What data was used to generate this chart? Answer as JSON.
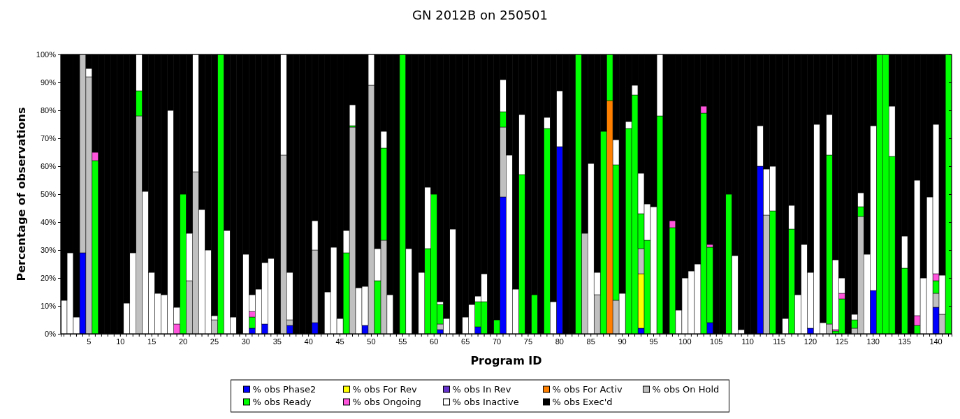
{
  "chart_data": {
    "type": "bar",
    "stacked": true,
    "title": "GN 2012B on 250501",
    "xlabel": "Program ID",
    "ylabel": "Percentage of observations",
    "categories": [
      null,
      null,
      null,
      null,
      "5",
      null,
      null,
      null,
      null,
      "10",
      null,
      null,
      null,
      null,
      "15",
      null,
      null,
      null,
      null,
      "20",
      null,
      null,
      null,
      null,
      "25",
      null,
      null,
      null,
      null,
      "30",
      null,
      null,
      null,
      null,
      "35",
      null,
      null,
      null,
      null,
      "40",
      null,
      null,
      null,
      null,
      "45",
      null,
      null,
      null,
      null,
      "50",
      null,
      null,
      null,
      null,
      "55",
      null,
      null,
      null,
      null,
      "60",
      null,
      null,
      null,
      null,
      "65",
      null,
      null,
      null,
      null,
      "70",
      null,
      null,
      null,
      null,
      "75",
      null,
      null,
      null,
      null,
      "80",
      null,
      null,
      null,
      null,
      "85",
      null,
      null,
      null,
      null,
      "90",
      null,
      null,
      null,
      null,
      "95",
      null,
      null,
      null,
      null,
      "100",
      null,
      null,
      null,
      null,
      "105",
      null,
      null,
      null,
      null,
      "110",
      null,
      null,
      null,
      null,
      "115",
      null,
      null,
      null,
      null,
      "120",
      null,
      null,
      null,
      null,
      "125",
      null,
      null,
      null,
      null,
      "130",
      null,
      null,
      null,
      null,
      "135",
      null,
      null,
      null,
      null,
      "140",
      null,
      null
    ],
    "ylim": [
      0,
      100
    ],
    "yticks": [
      {
        "value": 0,
        "label": "0%"
      },
      {
        "value": 10,
        "label": "10%"
      },
      {
        "value": 20,
        "label": "20%"
      },
      {
        "value": 30,
        "label": "30%"
      },
      {
        "value": 40,
        "label": "40%"
      },
      {
        "value": 50,
        "label": "50%"
      },
      {
        "value": 60,
        "label": "60%"
      },
      {
        "value": 70,
        "label": "70%"
      },
      {
        "value": 80,
        "label": "80%"
      },
      {
        "value": 90,
        "label": "90%"
      },
      {
        "value": 100,
        "label": "100%"
      }
    ],
    "legend": "bottom",
    "series": [
      {
        "name": "% obs Phase2",
        "color": "#0000ff",
        "values": [
          0,
          0,
          0,
          29,
          0,
          0,
          0,
          0,
          0,
          0,
          0,
          0,
          0,
          0,
          0,
          0,
          0,
          0,
          0,
          0,
          0,
          0,
          0,
          0,
          0,
          0,
          0,
          0,
          0,
          0,
          2,
          0,
          3.5,
          0,
          0,
          0,
          3,
          0,
          0,
          0,
          4,
          0,
          0,
          0,
          0,
          0,
          0,
          0,
          3,
          0,
          0,
          0,
          0,
          0,
          0,
          0,
          0,
          0,
          0,
          0,
          1.5,
          0,
          0,
          0,
          0,
          0,
          2.5,
          0,
          0,
          0,
          49,
          0,
          0,
          0,
          0,
          0,
          0,
          0,
          0,
          67,
          0,
          0,
          0,
          0,
          0,
          0,
          0,
          0,
          0,
          0,
          0,
          0,
          2,
          0,
          0,
          0,
          0,
          0,
          0,
          0,
          0,
          0,
          0,
          4,
          0,
          0,
          0,
          0,
          0,
          0,
          0,
          60,
          0,
          0,
          0,
          0,
          0,
          0,
          0,
          2,
          0,
          0,
          0,
          0,
          0,
          0,
          0,
          0,
          0,
          15.5,
          0,
          0,
          0,
          0,
          0,
          0,
          0,
          0,
          0,
          9.5,
          0,
          0
        ]
      },
      {
        "name": "% obs For Rev",
        "color": "#ffff00",
        "values": [
          0,
          0,
          0,
          0,
          0,
          0,
          0,
          0,
          0,
          0,
          0,
          0,
          0,
          0,
          0,
          0,
          0,
          0,
          0,
          0,
          0,
          0,
          0,
          0,
          0,
          0,
          0,
          0,
          0,
          0,
          0,
          0,
          0,
          0,
          0,
          0,
          0,
          0,
          0,
          0,
          0,
          0,
          0,
          0,
          0,
          0,
          0,
          0,
          0,
          0,
          0,
          0,
          0,
          0,
          0,
          0,
          0,
          0,
          0,
          0,
          0,
          0,
          0,
          0,
          0,
          0,
          0,
          0,
          0,
          0,
          0,
          0,
          0,
          0,
          0,
          0,
          0,
          0,
          0,
          0,
          0,
          0,
          0,
          0,
          0,
          0,
          0,
          0,
          0,
          0,
          0,
          0,
          19.5,
          0,
          0,
          0,
          0,
          0,
          0,
          0,
          0,
          0,
          0,
          0,
          0,
          0,
          0,
          0,
          0,
          0,
          0,
          0,
          0,
          0,
          0,
          0,
          0,
          0,
          0,
          0,
          0,
          0,
          0,
          0,
          0,
          0,
          0,
          0,
          0,
          0,
          0,
          0,
          0,
          0,
          0,
          0,
          0,
          0,
          0,
          0,
          0,
          0
        ]
      },
      {
        "name": "% obs In Rev",
        "color": "#6633cc",
        "values": [
          0,
          0,
          0,
          0,
          0,
          0,
          0,
          0,
          0,
          0,
          0,
          0,
          0,
          0,
          0,
          0,
          0,
          0,
          0,
          0,
          0,
          0,
          0,
          0,
          0,
          0,
          0,
          0,
          0,
          0,
          0,
          0,
          0,
          0,
          0,
          0,
          0,
          0,
          0,
          0,
          0,
          0,
          0,
          0,
          0,
          0,
          0,
          0,
          0,
          0,
          0,
          0,
          0,
          0,
          0,
          0,
          0,
          0,
          0,
          0,
          0,
          0,
          0,
          0,
          0,
          0,
          0,
          0,
          0,
          0,
          0,
          0,
          0,
          0,
          0,
          0,
          0,
          0,
          0,
          0,
          0,
          0,
          0,
          0,
          0,
          0,
          0,
          0,
          0,
          0,
          0,
          0,
          0,
          0,
          0,
          0,
          0,
          0,
          0,
          0,
          0,
          0,
          0,
          0,
          0,
          0,
          0,
          0,
          0,
          0,
          0,
          0,
          0,
          0,
          0,
          0,
          0,
          0,
          0,
          0,
          0,
          0,
          0,
          0,
          0,
          0,
          0,
          0,
          0,
          0,
          0,
          0,
          0,
          0,
          0,
          0,
          0,
          0,
          0,
          0,
          0,
          0
        ]
      },
      {
        "name": "% obs For Activ",
        "color": "#ff8000",
        "values": [
          0,
          0,
          0,
          0,
          0,
          0,
          0,
          0,
          0,
          0,
          0,
          0,
          0,
          0,
          0,
          0,
          0,
          0,
          0,
          0,
          0,
          0,
          0,
          0,
          0,
          0,
          0,
          0,
          0,
          0,
          0,
          0,
          0,
          0,
          0,
          0,
          0,
          0,
          0,
          0,
          0,
          0,
          0,
          0,
          0,
          0,
          0,
          0,
          0,
          0,
          0,
          0,
          0,
          0,
          0,
          0,
          0,
          0,
          0,
          0,
          0,
          0,
          0,
          0,
          0,
          0,
          0,
          0,
          0,
          0,
          0,
          0,
          0,
          0,
          0,
          0,
          0,
          0,
          0,
          0,
          0,
          0,
          0,
          0,
          0,
          0,
          0,
          83.5,
          0,
          0,
          0,
          0,
          0,
          0,
          0,
          0,
          0,
          0,
          0,
          0,
          0,
          0,
          0,
          0,
          0,
          0,
          0,
          0,
          0,
          0,
          0,
          0,
          0,
          0,
          0,
          0,
          0,
          0,
          0,
          0,
          0,
          0,
          0,
          0,
          0,
          0,
          0,
          0,
          0,
          0,
          0,
          0,
          0,
          0,
          0,
          0,
          0,
          0,
          0,
          0,
          0,
          0
        ]
      },
      {
        "name": "% obs On Hold",
        "color": "#c0c0c0",
        "values": [
          0,
          0,
          0,
          71,
          92,
          0,
          0,
          0,
          0,
          0,
          0,
          0,
          78,
          0,
          0,
          0,
          0,
          0,
          0,
          0,
          19,
          58,
          0,
          0,
          5,
          0,
          0,
          0,
          0,
          0,
          0,
          0,
          0,
          0,
          0,
          64,
          2,
          0,
          0,
          0,
          26,
          0,
          0,
          0,
          0,
          0,
          74,
          0,
          0,
          89,
          0,
          33.5,
          0,
          0,
          0,
          0,
          0,
          0,
          0,
          0,
          2,
          0,
          0,
          0,
          0,
          0,
          0,
          0,
          0,
          0,
          25,
          0,
          0,
          0,
          0,
          0,
          0,
          0,
          0,
          0,
          0,
          0,
          0,
          36,
          0,
          14,
          0,
          0,
          12,
          0,
          0,
          0,
          9,
          0,
          0,
          0,
          0,
          0,
          0,
          0,
          0,
          0,
          0,
          0,
          0,
          0,
          0,
          0,
          0,
          0,
          0,
          0,
          42.5,
          0,
          0,
          0,
          0,
          0,
          0,
          0,
          0,
          0,
          3.5,
          0,
          0,
          0,
          2,
          42,
          0,
          0,
          0,
          0,
          0,
          0,
          0,
          0,
          0,
          0,
          0,
          5,
          7,
          0
        ]
      },
      {
        "name": "% obs Ready",
        "color": "#00ff00",
        "values": [
          0,
          0,
          0,
          0,
          0,
          62,
          0,
          0,
          0,
          0,
          0,
          0,
          9,
          0,
          0,
          0,
          0,
          0,
          0,
          50,
          0,
          0,
          0,
          0,
          0,
          100,
          0,
          0,
          0,
          0,
          4,
          0,
          0,
          0,
          0,
          0,
          0,
          0,
          0,
          0,
          0,
          0,
          0,
          0,
          0,
          29,
          0.5,
          0,
          0,
          0,
          19,
          33,
          0,
          0,
          100,
          0,
          0,
          0,
          30.5,
          50,
          7,
          0,
          0,
          0,
          0,
          0,
          9,
          11.5,
          0,
          5,
          5.5,
          0,
          0,
          57,
          0,
          14,
          0,
          73.5,
          0,
          0,
          0,
          0,
          100,
          0,
          0,
          0,
          72.5,
          16.5,
          48.5,
          0,
          73.5,
          85.5,
          12.5,
          33.5,
          0,
          78,
          0,
          38,
          0,
          0,
          0,
          0,
          79,
          27,
          0,
          0,
          50,
          0,
          0,
          0,
          0,
          0,
          0,
          44,
          0,
          0,
          37.5,
          0,
          0,
          0,
          0,
          0,
          60.5,
          1,
          12.5,
          0,
          3,
          3.5,
          0,
          0,
          100,
          100,
          63.5,
          0,
          23.5,
          0,
          3,
          0,
          0,
          4.5,
          0,
          100
        ]
      },
      {
        "name": "% obs Ongoing",
        "color": "#ff55dd",
        "values": [
          0,
          0,
          0,
          0,
          0,
          3,
          0,
          0,
          0,
          0,
          0,
          0,
          0,
          0,
          0,
          0,
          0,
          0,
          3.5,
          0,
          0,
          0,
          0,
          0,
          0,
          0,
          0,
          0,
          0,
          0,
          2,
          0,
          0,
          0,
          0,
          0,
          0,
          0,
          0,
          0,
          0,
          0,
          0,
          0,
          0,
          0,
          0,
          0,
          0,
          0,
          0,
          0,
          0,
          0,
          0,
          0,
          0,
          0,
          0,
          0,
          0,
          0,
          0,
          0,
          0,
          0,
          0,
          0,
          0,
          0,
          0,
          0,
          0,
          0,
          0,
          0,
          0,
          0,
          0,
          0,
          0,
          0,
          0,
          0,
          0,
          0,
          0,
          0,
          0,
          0,
          0,
          0,
          0,
          0,
          0,
          0,
          0,
          2.5,
          0,
          0,
          0,
          0,
          2.5,
          1,
          0,
          0,
          0,
          0,
          0,
          0,
          0,
          0,
          0,
          0,
          0,
          0,
          0,
          0,
          0,
          0,
          0,
          0,
          0,
          0.5,
          2,
          0,
          0,
          0,
          0,
          0,
          0,
          0,
          0,
          0,
          0,
          0,
          3.5,
          0,
          0,
          2.5,
          0,
          0
        ]
      },
      {
        "name": "% obs Inactive",
        "color": "#ffffff",
        "values": [
          12,
          29,
          6,
          0,
          3,
          0,
          0,
          0,
          0,
          0,
          11,
          29,
          13,
          51,
          22,
          14.5,
          14,
          80,
          6,
          0,
          17,
          42,
          44.5,
          30,
          1.5,
          0,
          37,
          6,
          0,
          28.5,
          6,
          16,
          22,
          27,
          0,
          36,
          17,
          0,
          0,
          0,
          10.5,
          0,
          15,
          31,
          5.5,
          8,
          7.5,
          16.5,
          14,
          11,
          11.5,
          6,
          14,
          0,
          0,
          30.5,
          0,
          22,
          22,
          0,
          1,
          5.5,
          37.5,
          0,
          6,
          10.5,
          2,
          10,
          0,
          0,
          11.5,
          64,
          16,
          21.5,
          0,
          0,
          0,
          4,
          11.5,
          20,
          0,
          0,
          0,
          0,
          61,
          8,
          0,
          0,
          9,
          14.5,
          2.5,
          3.5,
          14.5,
          13,
          45.5,
          22,
          0,
          0,
          8.5,
          20,
          22.5,
          25,
          0,
          0,
          0,
          0,
          0,
          28,
          1.5,
          0,
          0,
          14.5,
          16.5,
          16,
          0,
          5.5,
          8.5,
          14,
          32,
          20,
          75,
          4,
          14.5,
          25,
          5.5,
          0,
          2,
          5,
          28.5,
          59,
          0,
          0,
          18,
          0,
          11.5,
          0,
          48.5,
          20,
          49,
          53.5,
          14,
          0
        ]
      },
      {
        "name": "% obs Exec'd",
        "color": "#000000",
        "values": [
          88,
          71,
          94,
          0,
          5,
          35,
          100,
          100,
          100,
          100,
          89,
          71,
          0,
          49,
          78,
          85.5,
          86,
          20,
          90.5,
          50,
          64,
          0,
          55.5,
          70,
          93.5,
          0,
          63,
          94,
          100,
          71.5,
          86,
          84,
          74.5,
          73,
          100,
          0,
          78,
          100,
          100,
          100,
          59.5,
          100,
          85,
          69,
          94.5,
          63,
          18,
          83.5,
          83,
          0,
          69.5,
          27.5,
          86,
          100,
          0,
          69.5,
          100,
          78,
          47.5,
          50,
          88.5,
          94.5,
          62.5,
          100,
          94,
          89.5,
          86.5,
          78.5,
          100,
          95,
          9,
          36,
          84,
          21.5,
          100,
          86,
          100,
          22.5,
          88.5,
          13,
          100,
          100,
          0,
          64,
          39,
          78,
          27.5,
          0,
          30.5,
          85.5,
          24,
          11,
          42.5,
          53.5,
          54.5,
          0,
          100,
          59.5,
          91.5,
          80,
          77.5,
          75,
          18.5,
          68,
          100,
          100,
          50,
          72,
          98.5,
          100,
          100,
          25.5,
          41,
          40,
          100,
          94.5,
          54,
          86,
          68,
          78,
          25,
          96,
          21.5,
          73.5,
          80,
          100,
          93,
          49.5,
          71.5,
          25.5,
          0,
          0,
          18.5,
          100,
          65,
          100,
          45,
          80,
          51,
          25,
          79,
          0
        ]
      }
    ]
  }
}
